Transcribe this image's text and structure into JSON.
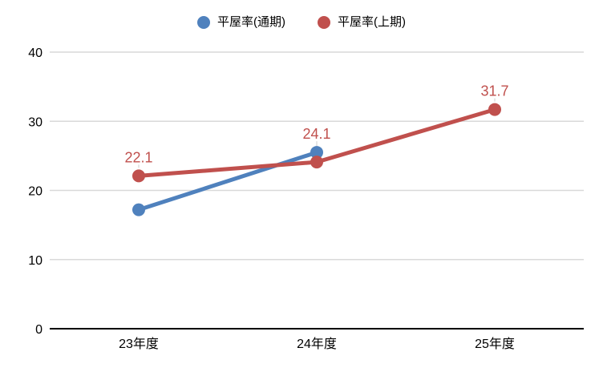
{
  "chart_data": {
    "type": "line",
    "title": "",
    "xlabel": "",
    "ylabel": "",
    "categories": [
      "23年度",
      "24年度",
      "25年度"
    ],
    "series": [
      {
        "name": "平屋率(通期)",
        "color": "#4f81bd",
        "values": [
          17.2,
          25.5,
          null
        ],
        "data_labels": [
          null,
          null,
          null
        ]
      },
      {
        "name": "平屋率(上期)",
        "color": "#c0504d",
        "values": [
          22.1,
          24.1,
          31.7
        ],
        "data_labels": [
          "22.1",
          "24.1",
          "31.7"
        ]
      }
    ],
    "ylim": [
      0,
      40
    ],
    "yticks": [
      0,
      10,
      20,
      30,
      40
    ],
    "grid": "horizontal-only",
    "legend_position": "top-center",
    "colors": {
      "data_label_text": "#c0504d",
      "axis_line": "#000000",
      "gridline": "#d9d9d9",
      "tick_label_text": "#000000",
      "label_leader_line": "#cccccc",
      "background": "#ffffff"
    }
  }
}
